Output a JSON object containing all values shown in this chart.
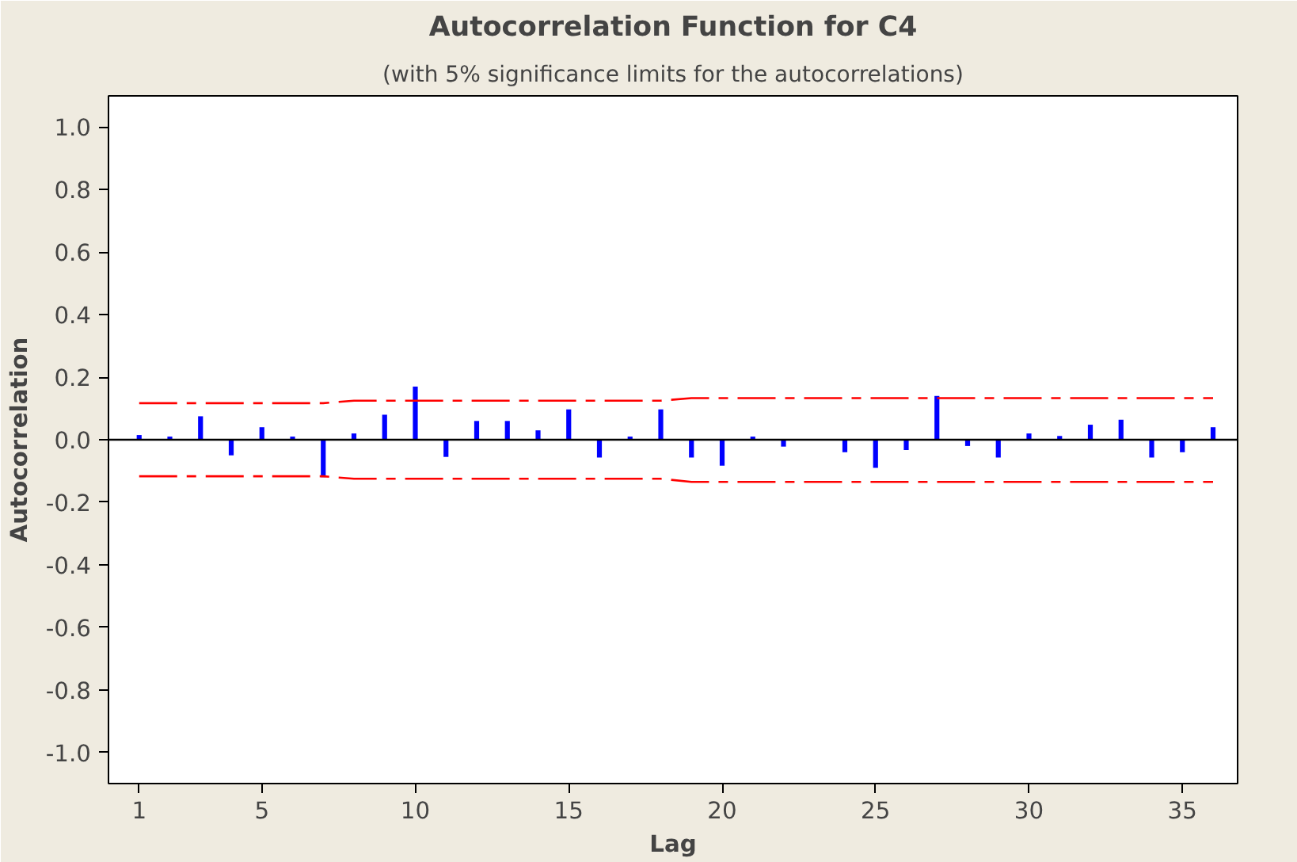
{
  "chart_data": {
    "type": "bar",
    "title": "Autocorrelation Function for C4",
    "subtitle": "(with 5% significance limits for the autocorrelations)",
    "xlabel": "Lag",
    "ylabel": "Autocorrelation",
    "x": [
      1,
      2,
      3,
      4,
      5,
      6,
      7,
      8,
      9,
      10,
      11,
      12,
      13,
      14,
      15,
      16,
      17,
      18,
      19,
      20,
      21,
      22,
      23,
      24,
      25,
      26,
      27,
      28,
      29,
      30,
      31,
      32,
      33,
      34,
      35,
      36
    ],
    "series": [
      {
        "color": "#0000ff",
        "values": [
          0.015,
          0.01,
          0.075,
          -0.05,
          0.04,
          0.01,
          -0.12,
          0.02,
          0.08,
          0.17,
          -0.055,
          0.06,
          0.06,
          0.03,
          0.097,
          -0.057,
          0.01,
          0.097,
          -0.057,
          -0.083,
          0.01,
          -0.022,
          0.0,
          -0.04,
          -0.09,
          -0.033,
          0.14,
          -0.02,
          -0.057,
          0.02,
          0.012,
          0.048,
          0.064,
          -0.057,
          -0.04,
          0.04
        ]
      },
      {
        "type": "line",
        "color": "#ff0000",
        "line_style": "dashed",
        "values": [
          0.117,
          0.117,
          0.117,
          0.117,
          0.117,
          0.117,
          0.117,
          0.125,
          0.125,
          0.125,
          0.125,
          0.125,
          0.125,
          0.125,
          0.125,
          0.125,
          0.125,
          0.125,
          0.133,
          0.133,
          0.133,
          0.133,
          0.133,
          0.133,
          0.133,
          0.133,
          0.133,
          0.133,
          0.133,
          0.133,
          0.133,
          0.133,
          0.133,
          0.133,
          0.133,
          0.133
        ]
      },
      {
        "type": "line",
        "color": "#ff0000",
        "line_style": "dashed",
        "values": [
          -0.117,
          -0.117,
          -0.117,
          -0.117,
          -0.117,
          -0.117,
          -0.117,
          -0.125,
          -0.125,
          -0.125,
          -0.125,
          -0.125,
          -0.125,
          -0.125,
          -0.125,
          -0.125,
          -0.125,
          -0.125,
          -0.135,
          -0.135,
          -0.135,
          -0.135,
          -0.135,
          -0.135,
          -0.135,
          -0.135,
          -0.135,
          -0.135,
          -0.135,
          -0.135,
          -0.135,
          -0.135,
          -0.135,
          -0.135,
          -0.135,
          -0.135
        ]
      }
    ],
    "ref_lines": [
      {
        "axis": "y",
        "value": 0,
        "color": "#000000"
      }
    ],
    "xlim": [
      0,
      36.8
    ],
    "ylim": [
      -1.1,
      1.1
    ],
    "xticks": [
      1,
      5,
      10,
      15,
      20,
      25,
      30,
      35
    ],
    "yticks": [
      {
        "value": 1.0,
        "label": "1.0"
      },
      {
        "value": 0.8,
        "label": "0.8"
      },
      {
        "value": 0.6,
        "label": "0.6"
      },
      {
        "value": 0.4,
        "label": "0.4"
      },
      {
        "value": 0.2,
        "label": "0.2"
      },
      {
        "value": 0.0,
        "label": "0.0"
      },
      {
        "value": -0.2,
        "label": "-0.2"
      },
      {
        "value": -0.4,
        "label": "-0.4"
      },
      {
        "value": -0.6,
        "label": "-0.6"
      },
      {
        "value": -0.8,
        "label": "-0.8"
      },
      {
        "value": -1.0,
        "label": "-1.0"
      }
    ],
    "grid": false
  }
}
